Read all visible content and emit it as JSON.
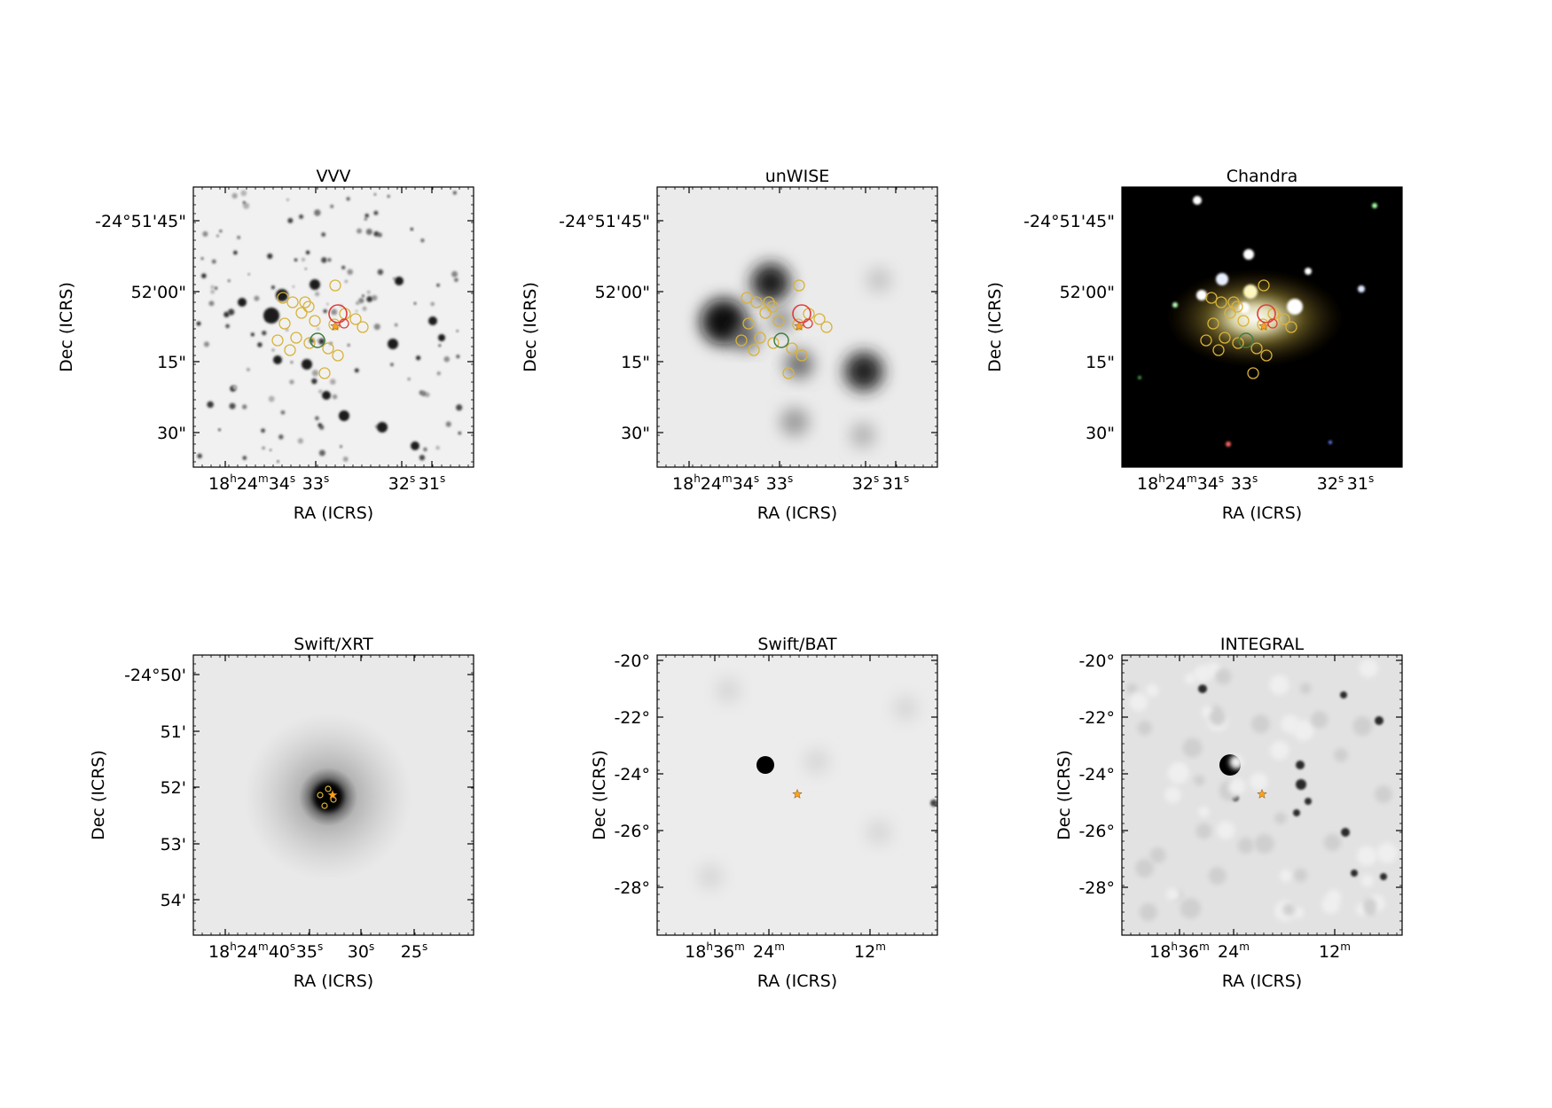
{
  "panels": [
    {
      "id": "vvv",
      "title": "VVV",
      "kind": "field",
      "background": "#f1f1f1",
      "xlabel": "RA (ICRS)",
      "ylabel": "Dec (ICRS)",
      "ra_ticks": [
        {
          "parts": [
            [
              "18",
              "h"
            ],
            [
              "24",
              "m"
            ],
            [
              "34",
              "s"
            ]
          ]
        },
        {
          "parts": [
            [
              "33",
              "s"
            ]
          ]
        },
        {
          "parts": [
            [
              "32",
              "s"
            ]
          ]
        },
        {
          "parts": [
            [
              "31",
              "s"
            ]
          ]
        }
      ],
      "dec_ticks": [
        "-24°51'45\"",
        "52'00\"",
        "15\"",
        "30\""
      ]
    },
    {
      "id": "unwise",
      "title": "unWISE",
      "kind": "field",
      "background": "#ebebeb",
      "xlabel": "RA (ICRS)",
      "ylabel": "Dec (ICRS)",
      "ra_ticks": [
        {
          "parts": [
            [
              "18",
              "h"
            ],
            [
              "24",
              "m"
            ],
            [
              "34",
              "s"
            ]
          ]
        },
        {
          "parts": [
            [
              "33",
              "s"
            ]
          ]
        },
        {
          "parts": [
            [
              "32",
              "s"
            ]
          ]
        },
        {
          "parts": [
            [
              "31",
              "s"
            ]
          ]
        }
      ],
      "dec_ticks": [
        "-24°51'45\"",
        "52'00\"",
        "15\"",
        "30\""
      ]
    },
    {
      "id": "chandra",
      "title": "Chandra",
      "kind": "field",
      "background": "#000000",
      "xlabel": "RA (ICRS)",
      "ylabel": "Dec (ICRS)",
      "ra_ticks": [
        {
          "parts": [
            [
              "18",
              "h"
            ],
            [
              "24",
              "m"
            ],
            [
              "34",
              "s"
            ]
          ]
        },
        {
          "parts": [
            [
              "33",
              "s"
            ]
          ]
        },
        {
          "parts": [
            [
              "32",
              "s"
            ]
          ]
        },
        {
          "parts": [
            [
              "31",
              "s"
            ]
          ]
        }
      ],
      "dec_ticks": [
        "-24°51'45\"",
        "52'00\"",
        "15\"",
        "30\""
      ]
    },
    {
      "id": "xrt",
      "title": "Swift/XRT",
      "kind": "xrt",
      "background": "#e9e9e9",
      "xlabel": "RA (ICRS)",
      "ylabel": "Dec (ICRS)",
      "ra_ticks": [
        {
          "parts": [
            [
              "18",
              "h"
            ],
            [
              "24",
              "m"
            ],
            [
              "40",
              "s"
            ]
          ]
        },
        {
          "parts": [
            [
              "35",
              "s"
            ]
          ]
        },
        {
          "parts": [
            [
              "30",
              "s"
            ]
          ]
        },
        {
          "parts": [
            [
              "25",
              "s"
            ]
          ]
        }
      ],
      "dec_ticks": [
        "-24°50'",
        "51'",
        "52'",
        "53'",
        "54'"
      ]
    },
    {
      "id": "bat",
      "title": "Swift/BAT",
      "kind": "wide",
      "background": "#ececec",
      "xlabel": "RA (ICRS)",
      "ylabel": "Dec (ICRS)",
      "ra_ticks": [
        {
          "parts": [
            [
              "18",
              "h"
            ],
            [
              "36",
              "m"
            ]
          ]
        },
        {
          "parts": [
            [
              "24",
              "m"
            ]
          ]
        },
        {
          "parts": [
            [
              "12",
              "m"
            ]
          ]
        }
      ],
      "dec_ticks": [
        "-20°",
        "-22°",
        "-24°",
        "-26°",
        "-28°"
      ]
    },
    {
      "id": "integral",
      "title": "INTEGRAL",
      "kind": "wide",
      "background": "#e2e2e2",
      "xlabel": "RA (ICRS)",
      "ylabel": "Dec (ICRS)",
      "ra_ticks": [
        {
          "parts": [
            [
              "18",
              "h"
            ],
            [
              "36",
              "m"
            ]
          ]
        },
        {
          "parts": [
            [
              "24",
              "m"
            ]
          ]
        },
        {
          "parts": [
            [
              "12",
              "m"
            ]
          ]
        }
      ],
      "dec_ticks": [
        "-20°",
        "-22°",
        "-24°",
        "-26°",
        "-28°"
      ]
    }
  ],
  "marker_colors": {
    "candidates": "#d8b23a",
    "red": "#e03c3c",
    "green": "#3f7d3f",
    "target_star": "#ff9f1a"
  }
}
